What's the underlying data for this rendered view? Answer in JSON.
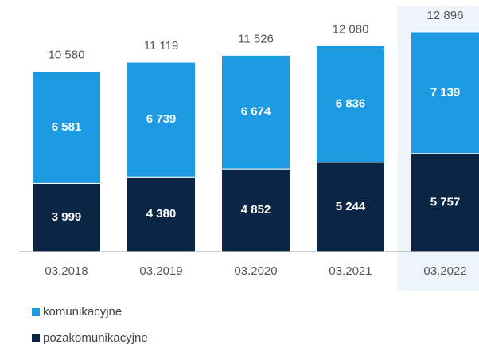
{
  "chart_data": {
    "type": "stacked_bar",
    "categories": [
      "03.2018",
      "03.2019",
      "03.2020",
      "03.2021",
      "03.2022"
    ],
    "series": [
      {
        "name": "pozakomunikacyjne",
        "color": "#0b2545",
        "values": [
          3999,
          4380,
          4852,
          5244,
          5757
        ],
        "value_labels": [
          "3 999",
          "4 380",
          "4 852",
          "5 244",
          "5 757"
        ]
      },
      {
        "name": "komunikacyjne",
        "color": "#1d9be2",
        "values": [
          6581,
          6739,
          6674,
          6836,
          7139
        ],
        "value_labels": [
          "6 581",
          "6 739",
          "6 674",
          "6 836",
          "7 139"
        ]
      }
    ],
    "totals": [
      10580,
      11119,
      11526,
      12080,
      12896
    ],
    "total_labels": [
      "10 580",
      "11 119",
      "11 526",
      "12 080",
      "12 896"
    ]
  }
}
